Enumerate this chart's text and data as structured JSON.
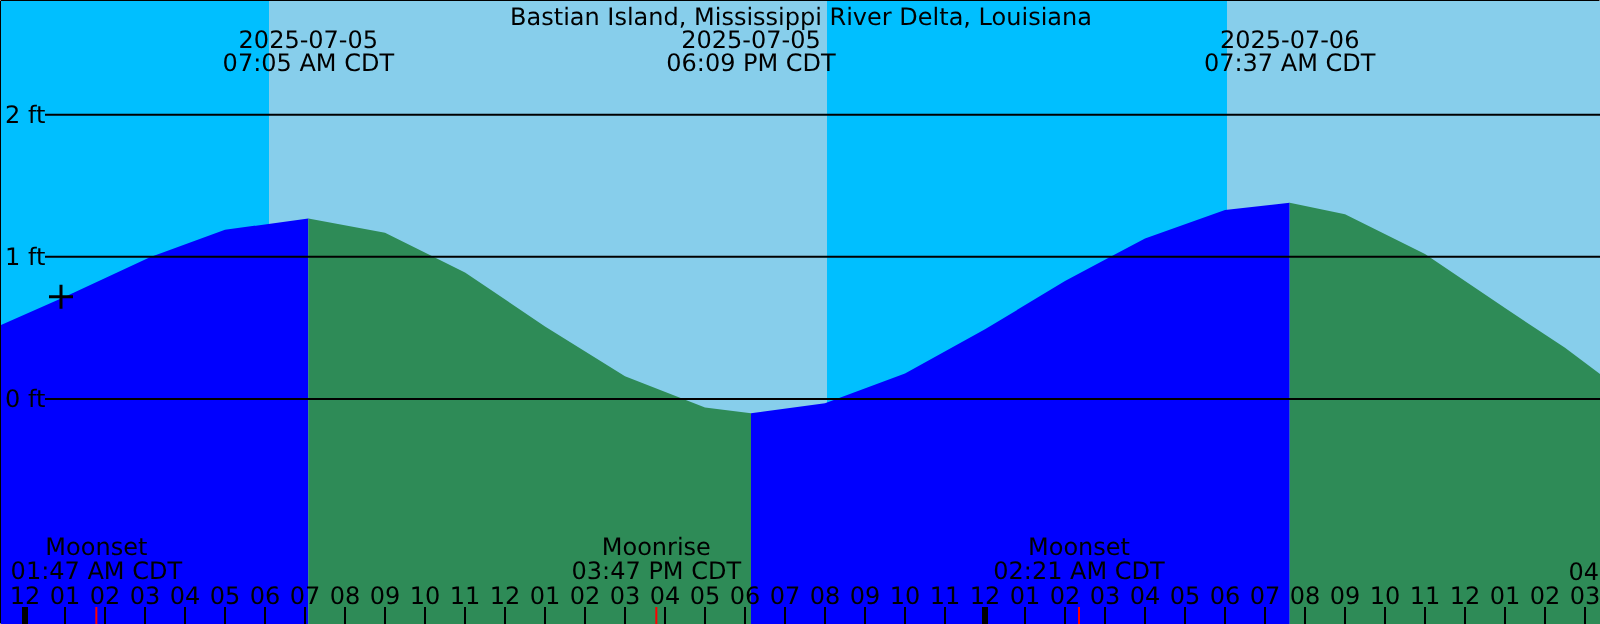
{
  "chart_data": {
    "type": "area",
    "title": "Bastian Island, Mississippi River Delta, Louisiana",
    "xlim": [
      "2025-07-04T23:24",
      "2025-07-06T15:24"
    ],
    "ylim": [
      -1.59,
      2.8
    ],
    "xticks": [
      {
        "value": "2025-07-05T00:00",
        "label": "12"
      },
      {
        "value": "2025-07-05T01:00",
        "label": "01"
      },
      {
        "value": "2025-07-05T02:00",
        "label": "02"
      },
      {
        "value": "2025-07-05T03:00",
        "label": "03"
      },
      {
        "value": "2025-07-05T04:00",
        "label": "04"
      },
      {
        "value": "2025-07-05T05:00",
        "label": "05"
      },
      {
        "value": "2025-07-05T06:00",
        "label": "06"
      },
      {
        "value": "2025-07-05T07:00",
        "label": "07"
      },
      {
        "value": "2025-07-05T08:00",
        "label": "08"
      },
      {
        "value": "2025-07-05T09:00",
        "label": "09"
      },
      {
        "value": "2025-07-05T10:00",
        "label": "10"
      },
      {
        "value": "2025-07-05T11:00",
        "label": "11"
      },
      {
        "value": "2025-07-05T12:00",
        "label": "12"
      },
      {
        "value": "2025-07-05T13:00",
        "label": "01"
      },
      {
        "value": "2025-07-05T14:00",
        "label": "02"
      },
      {
        "value": "2025-07-05T15:00",
        "label": "03"
      },
      {
        "value": "2025-07-05T16:00",
        "label": "04"
      },
      {
        "value": "2025-07-05T17:00",
        "label": "05"
      },
      {
        "value": "2025-07-05T18:00",
        "label": "06"
      },
      {
        "value": "2025-07-05T19:00",
        "label": "07"
      },
      {
        "value": "2025-07-05T20:00",
        "label": "08"
      },
      {
        "value": "2025-07-05T21:00",
        "label": "09"
      },
      {
        "value": "2025-07-05T22:00",
        "label": "10"
      },
      {
        "value": "2025-07-05T23:00",
        "label": "11"
      },
      {
        "value": "2025-07-06T00:00",
        "label": "12"
      },
      {
        "value": "2025-07-06T01:00",
        "label": "01"
      },
      {
        "value": "2025-07-06T02:00",
        "label": "02"
      },
      {
        "value": "2025-07-06T03:00",
        "label": "03"
      },
      {
        "value": "2025-07-06T04:00",
        "label": "04"
      },
      {
        "value": "2025-07-06T05:00",
        "label": "05"
      },
      {
        "value": "2025-07-06T06:00",
        "label": "06"
      },
      {
        "value": "2025-07-06T07:00",
        "label": "07"
      },
      {
        "value": "2025-07-06T08:00",
        "label": "08"
      },
      {
        "value": "2025-07-06T09:00",
        "label": "09"
      },
      {
        "value": "2025-07-06T10:00",
        "label": "10"
      },
      {
        "value": "2025-07-06T11:00",
        "label": "11"
      },
      {
        "value": "2025-07-06T12:00",
        "label": "12"
      },
      {
        "value": "2025-07-06T13:00",
        "label": "01"
      },
      {
        "value": "2025-07-06T14:00",
        "label": "02"
      },
      {
        "value": "2025-07-06T15:00",
        "label": "03"
      }
    ],
    "yticks": [
      {
        "value": 0,
        "label": "0 ft"
      },
      {
        "value": 1,
        "label": "1 ft"
      },
      {
        "value": 2,
        "label": "2 ft"
      }
    ],
    "grid": "y",
    "bands": [
      {
        "axis": "x",
        "from": "2025-07-04T23:24",
        "to": "2025-07-05T06:06",
        "color": "#00bfff"
      },
      {
        "axis": "x",
        "from": "2025-07-05T06:06",
        "to": "2025-07-05T20:03",
        "color": "#87ceeb"
      },
      {
        "axis": "x",
        "from": "2025-07-05T20:03",
        "to": "2025-07-06T06:03",
        "color": "#00bfff"
      },
      {
        "axis": "x",
        "from": "2025-07-06T06:03",
        "to": "2025-07-06T15:24",
        "color": "#87ceeb"
      }
    ],
    "series": [
      {
        "color": "#0000ff",
        "x": [
          "2025-07-04T23:24",
          "2025-07-05T01:00",
          "2025-07-05T03:09",
          "2025-07-05T05:00",
          "2025-07-05T07:05"
        ],
        "values": [
          0.52,
          0.72,
          1.0,
          1.19,
          1.27
        ]
      },
      {
        "color": "#2e8b57",
        "x": [
          "2025-07-05T07:05",
          "2025-07-05T09:00",
          "2025-07-05T11:00",
          "2025-07-05T13:00",
          "2025-07-05T15:00",
          "2025-07-05T17:00",
          "2025-07-05T18:09"
        ],
        "values": [
          1.27,
          1.17,
          0.89,
          0.51,
          0.16,
          -0.06,
          -0.1
        ]
      },
      {
        "color": "#0000ff",
        "x": [
          "2025-07-05T18:09",
          "2025-07-05T20:00",
          "2025-07-05T22:00",
          "2025-07-06T00:00",
          "2025-07-06T02:00",
          "2025-07-06T04:00",
          "2025-07-06T06:00",
          "2025-07-06T07:37"
        ],
        "values": [
          -0.1,
          -0.03,
          0.18,
          0.49,
          0.83,
          1.13,
          1.33,
          1.38
        ]
      },
      {
        "color": "#2e8b57",
        "x": [
          "2025-07-06T07:37",
          "2025-07-06T09:00",
          "2025-07-06T11:00",
          "2025-07-06T13:00",
          "2025-07-06T14:30",
          "2025-07-06T15:24"
        ],
        "values": [
          1.38,
          1.3,
          1.02,
          0.64,
          0.36,
          0.17
        ]
      },
      {
        "type": "scatter",
        "marker": "cross",
        "color": "#000000",
        "x": [
          "2025-07-05T00:54"
        ],
        "values": [
          0.72
        ]
      }
    ],
    "ref_lines": [
      {
        "axis": "x",
        "value": "2025-07-05T01:47",
        "label": "Moonset\n01:47 AM CDT",
        "color": "#ff0000"
      },
      {
        "axis": "x",
        "value": "2025-07-05T15:47",
        "label": "Moonrise\n03:47 PM CDT",
        "color": "#ff0000"
      },
      {
        "axis": "x",
        "value": "2025-07-06T02:21",
        "label": "Moonset\n02:21 AM CDT",
        "color": "#ff0000"
      }
    ],
    "annotations": [
      "2025-07-05\n07:05 AM CDT",
      "2025-07-05\n06:09 PM CDT",
      "2025-07-06\n07:37 AM CDT",
      "04"
    ]
  }
}
